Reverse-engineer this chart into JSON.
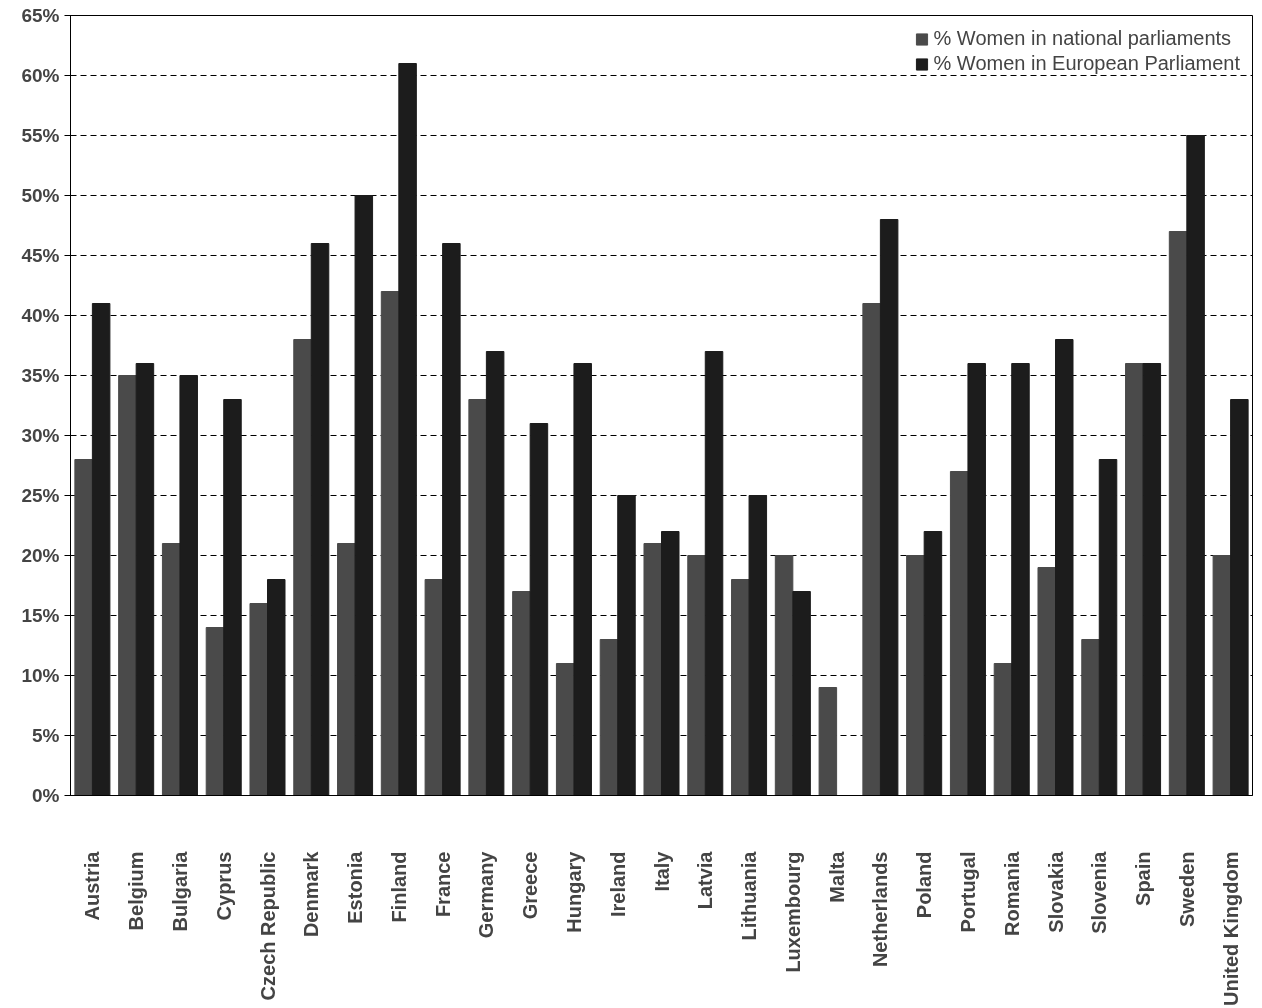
{
  "chart_data": {
    "type": "bar",
    "categories": [
      "Austria",
      "Belgium",
      "Bulgaria",
      "Cyprus",
      "Czech Republic",
      "Denmark",
      "Estonia",
      "Finland",
      "France",
      "Germany",
      "Greece",
      "Hungary",
      "Ireland",
      "Italy",
      "Latvia",
      "Lithuania",
      "Luxembourg",
      "Malta",
      "Netherlands",
      "Poland",
      "Portugal",
      "Romania",
      "Slovakia",
      "Slovenia",
      "Spain",
      "Sweden",
      "United Kingdom"
    ],
    "series": [
      {
        "name": "% Women in national parliaments",
        "color": "#4a4a4a",
        "values": [
          28,
          35,
          21,
          14,
          16,
          38,
          21,
          42,
          18,
          33,
          17,
          11,
          13,
          21,
          20,
          18,
          20,
          9,
          41,
          20,
          27,
          11,
          19,
          13,
          36,
          47,
          20
        ]
      },
      {
        "name": "% Women in European Parliament",
        "color": "#1c1c1c",
        "values": [
          41,
          36,
          35,
          33,
          18,
          46,
          50,
          61,
          46,
          37,
          31,
          36,
          25,
          22,
          37,
          25,
          17,
          0,
          48,
          22,
          36,
          36,
          38,
          28,
          36,
          55,
          33
        ]
      }
    ],
    "ylim": [
      0,
      65
    ],
    "yticks": [
      {
        "value": 0,
        "label": "0%"
      },
      {
        "value": 5,
        "label": "5%"
      },
      {
        "value": 10,
        "label": "10%"
      },
      {
        "value": 15,
        "label": "15%"
      },
      {
        "value": 20,
        "label": "20%"
      },
      {
        "value": 25,
        "label": "25%"
      },
      {
        "value": 30,
        "label": "30%"
      },
      {
        "value": 35,
        "label": "35%"
      },
      {
        "value": 40,
        "label": "40%"
      },
      {
        "value": 45,
        "label": "45%"
      },
      {
        "value": 50,
        "label": "50%"
      },
      {
        "value": 55,
        "label": "55%"
      },
      {
        "value": 60,
        "label": "60%"
      },
      {
        "value": 65,
        "label": "65%"
      }
    ],
    "grid": "y",
    "legend": "top right"
  }
}
